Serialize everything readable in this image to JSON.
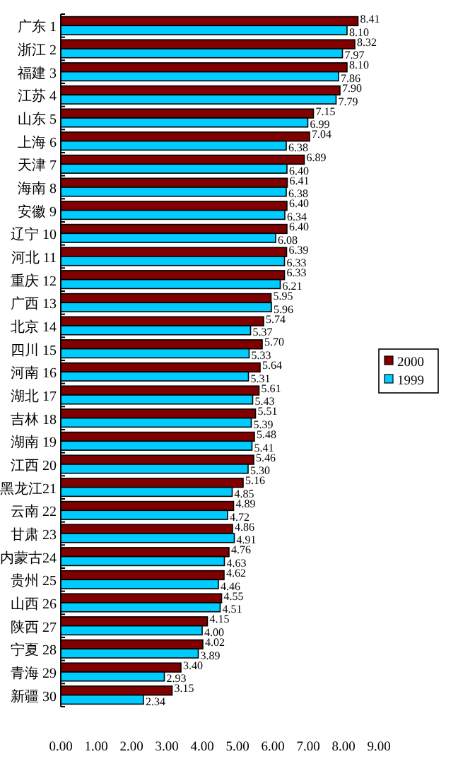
{
  "chart_data": {
    "type": "bar",
    "orientation": "horizontal",
    "categories": [
      "广东 1",
      "浙江 2",
      "福建 3",
      "江苏 4",
      "山东 5",
      "上海 6",
      "天津 7",
      "海南 8",
      "安徽 9",
      "辽宁 10",
      "河北 11",
      "重庆 12",
      "广西 13",
      "北京 14",
      "四川 15",
      "河南 16",
      "湖北 17",
      "吉林 18",
      "湖南 19",
      "江西 20",
      "黑龙江21",
      "云南 22",
      "甘肃 23",
      "内蒙古24",
      "贵州 25",
      "山西 26",
      "陕西 27",
      "宁夏 28",
      "青海 29",
      "新疆 30"
    ],
    "series": [
      {
        "name": "2000",
        "color": "#800000",
        "values": [
          8.41,
          8.32,
          8.1,
          7.9,
          7.15,
          7.04,
          6.89,
          6.41,
          6.4,
          6.4,
          6.39,
          6.33,
          5.95,
          5.74,
          5.7,
          5.64,
          5.61,
          5.51,
          5.48,
          5.46,
          5.16,
          4.89,
          4.86,
          4.76,
          4.62,
          4.55,
          4.15,
          4.02,
          3.4,
          3.15
        ],
        "value_labels": [
          "8.41",
          "8.32",
          "8.10",
          "7.90",
          "7.15",
          "7.04",
          "6.89",
          "6.41",
          "6.40",
          "6.40",
          "6.39",
          "6.33",
          "5.95",
          "5.74",
          "5.70",
          "5.64",
          "5.61",
          "5.51",
          "5.48",
          "5.46",
          "5.16",
          "4.89",
          "4.86",
          "4.76",
          "4.62",
          "4.55",
          "4.15",
          "4.02",
          "3.40",
          "3.15"
        ]
      },
      {
        "name": "1999",
        "color": "#00ccff",
        "values": [
          8.1,
          7.97,
          7.86,
          7.79,
          6.99,
          6.38,
          6.4,
          6.38,
          6.34,
          6.08,
          6.33,
          6.21,
          5.96,
          5.37,
          5.33,
          5.31,
          5.43,
          5.39,
          5.41,
          5.3,
          4.85,
          4.72,
          4.91,
          4.63,
          4.46,
          4.51,
          4.0,
          3.89,
          2.93,
          2.34
        ],
        "value_labels": [
          "8.10",
          "7.97",
          "7.86",
          "7.79",
          "6.99",
          "6.38",
          "6.40",
          "6.38",
          "6.34",
          "6.08",
          "6.33",
          "6.21",
          "5.96",
          "5.37",
          "5.33",
          "5.31",
          "5.43",
          "5.39",
          "5.41",
          "5.30",
          "4.85",
          "4.72",
          "4.91",
          "4.63",
          "4.46",
          "4.51",
          "4.00",
          "3.89",
          "2.93",
          "2.34"
        ]
      }
    ],
    "xlim": [
      0,
      9
    ],
    "xticks": [
      {
        "value": 0,
        "label": "0.00"
      },
      {
        "value": 1,
        "label": "1.00"
      },
      {
        "value": 2,
        "label": "2.00"
      },
      {
        "value": 3,
        "label": "3.00"
      },
      {
        "value": 4,
        "label": "4.00"
      },
      {
        "value": 5,
        "label": "5.00"
      },
      {
        "value": 6,
        "label": "6.00"
      },
      {
        "value": 7,
        "label": "7.00"
      },
      {
        "value": 8,
        "label": "8.00"
      },
      {
        "value": 9,
        "label": "9.00"
      }
    ],
    "legend": "right"
  }
}
